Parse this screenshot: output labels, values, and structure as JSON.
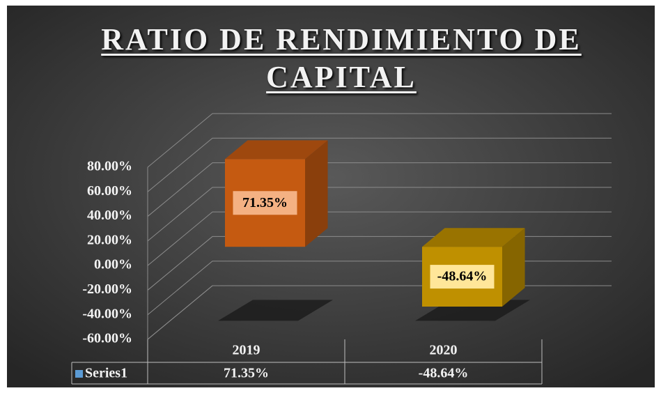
{
  "chart_data": {
    "type": "bar3d",
    "title": "RATIO DE RENDIMIENTO DE CAPITAL",
    "categories": [
      "2019",
      "2020"
    ],
    "series": [
      {
        "name": "Series1",
        "color": "#5b9bd5",
        "values": [
          71.35,
          -48.64
        ],
        "value_labels": [
          "71.35%",
          "-48.64%"
        ]
      }
    ],
    "colors": [
      "#c55a11",
      "#bf9000"
    ],
    "ylim": [
      -60,
      80
    ],
    "yticks": [
      {
        "value": -60,
        "label": "-60.00%"
      },
      {
        "value": -40,
        "label": "-40.00%"
      },
      {
        "value": -20,
        "label": "-20.00%"
      },
      {
        "value": 0,
        "label": "0.00%"
      },
      {
        "value": 20,
        "label": "20.00%"
      },
      {
        "value": 40,
        "label": "40.00%"
      },
      {
        "value": 60,
        "label": "60.00%"
      },
      {
        "value": 80,
        "label": "80.00%"
      }
    ],
    "grid": true,
    "data_table": true
  }
}
